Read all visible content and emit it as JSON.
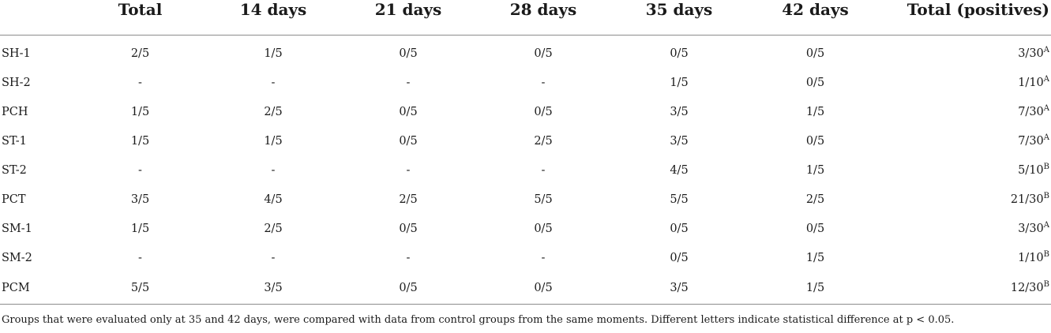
{
  "table": {
    "headers": [
      "",
      "Total",
      "14 days",
      "21 days",
      "28 days",
      "35 days",
      "42 days",
      "Total (positives)"
    ],
    "rows": [
      {
        "group": "SH-1",
        "cells": [
          "2/5",
          "1/5",
          "0/5",
          "0/5",
          "0/5",
          "0/5"
        ],
        "total": "3/30",
        "letter": "A"
      },
      {
        "group": "SH-2",
        "cells": [
          "-",
          "-",
          "-",
          "-",
          "1/5",
          "0/5"
        ],
        "total": "1/10",
        "letter": "A"
      },
      {
        "group": "PCH",
        "cells": [
          "1/5",
          "2/5",
          "0/5",
          "0/5",
          "3/5",
          "1/5"
        ],
        "total": "7/30",
        "letter": "A"
      },
      {
        "group": "ST-1",
        "cells": [
          "1/5",
          "1/5",
          "0/5",
          "2/5",
          "3/5",
          "0/5"
        ],
        "total": "7/30",
        "letter": "A"
      },
      {
        "group": "ST-2",
        "cells": [
          "-",
          "-",
          "-",
          "-",
          "4/5",
          "1/5"
        ],
        "total": "5/10",
        "letter": "B"
      },
      {
        "group": "PCT",
        "cells": [
          "3/5",
          "4/5",
          "2/5",
          "5/5",
          "5/5",
          "2/5"
        ],
        "total": "21/30",
        "letter": "B"
      },
      {
        "group": "SM-1",
        "cells": [
          "1/5",
          "2/5",
          "0/5",
          "0/5",
          "0/5",
          "0/5"
        ],
        "total": "3/30",
        "letter": "A"
      },
      {
        "group": "SM-2",
        "cells": [
          "-",
          "-",
          "-",
          "-",
          "0/5",
          "1/5"
        ],
        "total": "1/10",
        "letter": "B"
      },
      {
        "group": "PCM",
        "cells": [
          "5/5",
          "3/5",
          "0/5",
          "0/5",
          "3/5",
          "1/5"
        ],
        "total": "12/30",
        "letter": "B"
      }
    ]
  },
  "footnote": "Groups that were evaluated only at 35 and 42 days, were compared with data from control groups from the same moments. Different letters indicate statistical difference at p < 0.05."
}
